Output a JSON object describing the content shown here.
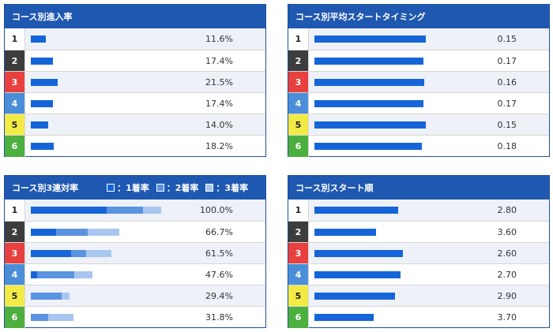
{
  "boat_colors": {
    "1": {
      "bg": "#ffffff",
      "fg": "#222222"
    },
    "2": {
      "bg": "#3d3d3d",
      "fg": "#ffffff"
    },
    "3": {
      "bg": "#e8403e",
      "fg": "#ffffff"
    },
    "4": {
      "bg": "#4a8ed8",
      "fg": "#ffffff"
    },
    "5": {
      "bg": "#f2ea45",
      "fg": "#222222"
    },
    "6": {
      "bg": "#4caf3e",
      "fg": "#ffffff"
    }
  },
  "colors": {
    "header": "#1f58b0",
    "bar_primary": "#1565d8",
    "bar_second": "#5a93e0",
    "bar_third": "#a8c6ef"
  },
  "panels": {
    "entry_rate": {
      "title": "コース別進入率",
      "rows": [
        {
          "boat": "1",
          "value_text": "11.6%",
          "fraction": 0.116
        },
        {
          "boat": "2",
          "value_text": "17.4%",
          "fraction": 0.174
        },
        {
          "boat": "3",
          "value_text": "21.5%",
          "fraction": 0.215
        },
        {
          "boat": "4",
          "value_text": "17.4%",
          "fraction": 0.174
        },
        {
          "boat": "5",
          "value_text": "14.0%",
          "fraction": 0.14
        },
        {
          "boat": "6",
          "value_text": "18.2%",
          "fraction": 0.182
        }
      ]
    },
    "avg_start": {
      "title": "コース別平均スタートタイミング",
      "rows": [
        {
          "boat": "1",
          "value_text": "0.15",
          "fraction": 0.84
        },
        {
          "boat": "2",
          "value_text": "0.17",
          "fraction": 0.82
        },
        {
          "boat": "3",
          "value_text": "0.16",
          "fraction": 0.83
        },
        {
          "boat": "4",
          "value_text": "0.17",
          "fraction": 0.82
        },
        {
          "boat": "5",
          "value_text": "0.15",
          "fraction": 0.84
        },
        {
          "boat": "6",
          "value_text": "0.18",
          "fraction": 0.81
        }
      ]
    },
    "trifecta": {
      "title": "コース別3連対率",
      "legend": [
        {
          "label": "：1着率",
          "color_key": "bar_primary"
        },
        {
          "label": "：2着率",
          "color_key": "bar_second"
        },
        {
          "label": "：3着率",
          "color_key": "bar_third"
        }
      ],
      "rows": [
        {
          "boat": "1",
          "value_text": "100.0%",
          "parts": [
            0.58,
            0.28,
            0.14
          ]
        },
        {
          "boat": "2",
          "value_text": "66.7%",
          "parts": [
            0.19,
            0.24,
            0.24
          ]
        },
        {
          "boat": "3",
          "value_text": "61.5%",
          "parts": [
            0.31,
            0.115,
            0.19
          ]
        },
        {
          "boat": "4",
          "value_text": "47.6%",
          "parts": [
            0.05,
            0.285,
            0.14
          ]
        },
        {
          "boat": "5",
          "value_text": "29.4%",
          "parts": [
            0.0,
            0.235,
            0.06
          ]
        },
        {
          "boat": "6",
          "value_text": "31.8%",
          "parts": [
            0.0,
            0.13,
            0.19
          ]
        }
      ]
    },
    "start_order": {
      "title": "コース別スタート順",
      "rows": [
        {
          "boat": "1",
          "value_text": "2.80",
          "fraction": 0.66
        },
        {
          "boat": "2",
          "value_text": "3.60",
          "fraction": 0.49
        },
        {
          "boat": "3",
          "value_text": "2.60",
          "fraction": 0.7
        },
        {
          "boat": "4",
          "value_text": "2.70",
          "fraction": 0.68
        },
        {
          "boat": "5",
          "value_text": "2.90",
          "fraction": 0.64
        },
        {
          "boat": "6",
          "value_text": "3.70",
          "fraction": 0.47
        }
      ]
    }
  }
}
